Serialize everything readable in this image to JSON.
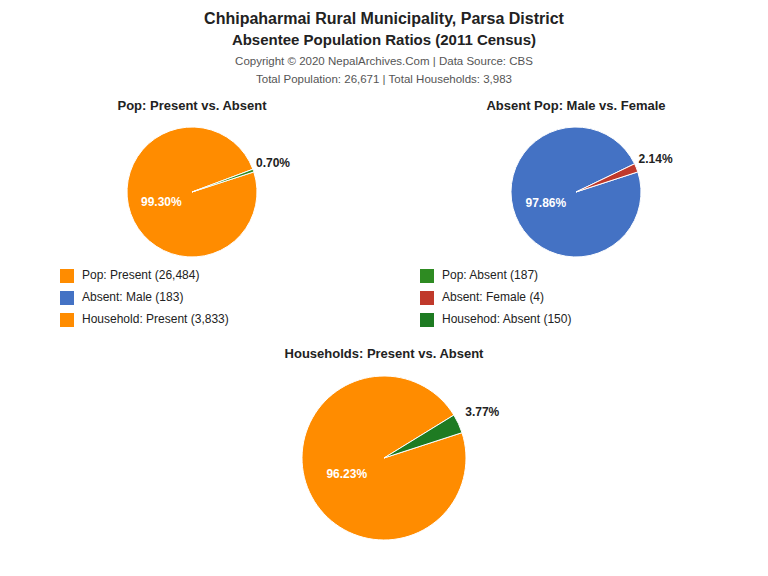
{
  "title": "Chhipaharmai Rural Municipality, Parsa District",
  "subtitle": "Absentee Population Ratios (2011 Census)",
  "annotations": [
    "Copyright © 2020 NepalArchives.Com | Data Source: CBS",
    "Total Population: 26,671 | Total Households: 3,983"
  ],
  "chart_data": [
    {
      "type": "pie",
      "title": "Pop: Present vs. Absent",
      "categories": [
        "Pop: Present (26,484)",
        "Pop: Absent (187)"
      ],
      "values": [
        99.3,
        0.7
      ],
      "value_labels": [
        "99.30%",
        "0.70%"
      ],
      "colors": [
        "#FF8C00",
        "#2E8B22"
      ],
      "data_labels": true
    },
    {
      "type": "pie",
      "title": "Absent Pop: Male vs. Female",
      "categories": [
        "Absent: Male (183)",
        "Absent: Female (4)"
      ],
      "values": [
        97.86,
        2.14
      ],
      "value_labels": [
        "97.86%",
        "2.14%"
      ],
      "colors": [
        "#4472C4",
        "#C0392B"
      ],
      "data_labels": true
    },
    {
      "type": "pie",
      "title": "Households: Present vs. Absent",
      "categories": [
        "Household: Present (3,833)",
        "Househod: Absent (150)"
      ],
      "values": [
        96.23,
        3.77
      ],
      "value_labels": [
        "96.23%",
        "3.77%"
      ],
      "colors": [
        "#FF8C00",
        "#1E7B22"
      ],
      "data_labels": true
    }
  ]
}
